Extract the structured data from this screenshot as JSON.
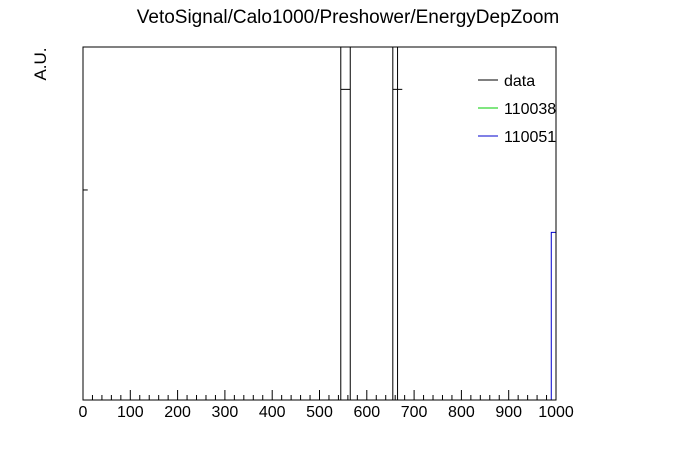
{
  "chart_data": {
    "type": "histogram",
    "title": "VetoSignal/Calo1000/Preshower/EnergyDepZoom",
    "xlabel": "",
    "ylabel": "A.U.",
    "xlim": [
      0,
      1000
    ],
    "ylim": [
      0,
      1
    ],
    "x_ticks": [
      0,
      100,
      200,
      300,
      400,
      500,
      600,
      700,
      800,
      900,
      1000
    ],
    "x_minor_step": 20,
    "grid": false,
    "legend_position": "top-right",
    "series": [
      {
        "name": "data",
        "color": "#000000",
        "style": "points-with-errors",
        "points": [
          {
            "x": 5,
            "y": 0.595,
            "xerr": 5
          },
          {
            "x": 550,
            "y": 0.88,
            "xerr": 5
          },
          {
            "x": 560,
            "y": 0.88,
            "xerr": 5
          },
          {
            "x": 660,
            "y": 0.88,
            "xerr": 5
          },
          {
            "x": 670,
            "y": 0.88,
            "xerr": 5
          }
        ],
        "vertical_lines": [
          {
            "x_start": 545,
            "x_end": 565,
            "y": 1.0
          },
          {
            "x_start": 655,
            "x_end": 665,
            "y": 1.0
          }
        ]
      },
      {
        "name": "110038",
        "color": "#00cc00",
        "style": "step",
        "bins": []
      },
      {
        "name": "110051",
        "color": "#0000cc",
        "style": "step",
        "bins": [
          {
            "x_low": 990,
            "x_high": 1000,
            "y": 0.475
          }
        ]
      }
    ]
  }
}
